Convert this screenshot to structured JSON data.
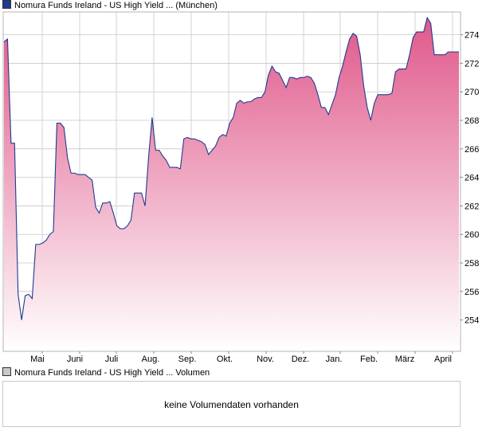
{
  "price_legend": {
    "label": "Nomura Funds Ireland - US High Yield ... (München)",
    "color": "#1f3b8f"
  },
  "volume_legend": {
    "label": "Nomura Funds Ireland - US High Yield ... Volumen",
    "color": "#c8c8c8"
  },
  "volume_panel": {
    "message": "keine Volumendaten vorhanden"
  },
  "chart_data": {
    "type": "area",
    "title": "",
    "xlabel": "",
    "ylabel": "",
    "ylim": [
      251.8,
      275.6
    ],
    "yticks": [
      254,
      256,
      258,
      260,
      262,
      264,
      266,
      268,
      270,
      272,
      274
    ],
    "x_ticks": [
      "Mai",
      "Juni",
      "Juli",
      "Aug.",
      "Sep.",
      "Okt.",
      "Nov.",
      "Dez.",
      "Jan.",
      "Feb.",
      "März",
      "April"
    ],
    "grid": true,
    "colors": {
      "line": "#1f3b8f",
      "fill_top": "#e0588a",
      "fill_bottom": "#ffffff",
      "grid": "#c8c8c8"
    },
    "series": [
      {
        "values": [
          273.5,
          273.7,
          266.4,
          266.4,
          255.8,
          254.0,
          255.7,
          255.8,
          255.5,
          259.3,
          259.3,
          259.4,
          259.6,
          260.0,
          260.2,
          267.8,
          267.8,
          267.5,
          265.4,
          264.3,
          264.3,
          264.2,
          264.2,
          264.2,
          264.0,
          263.8,
          261.9,
          261.5,
          262.2,
          262.2,
          262.3,
          261.5,
          260.6,
          260.4,
          260.4,
          260.6,
          261.0,
          262.9,
          262.9,
          262.9,
          262.0,
          265.4,
          268.2,
          265.9,
          265.9,
          265.5,
          265.2,
          264.7,
          264.7,
          264.7,
          264.6,
          266.7,
          266.8,
          266.7,
          266.7,
          266.6,
          266.5,
          266.3,
          265.6,
          265.9,
          266.2,
          266.8,
          267.0,
          266.9,
          267.8,
          268.2,
          269.2,
          269.4,
          269.2,
          269.3,
          269.3,
          269.5,
          269.6,
          269.6,
          270.0,
          271.2,
          271.8,
          271.4,
          271.3,
          270.8,
          270.3,
          271.0,
          271.0,
          270.9,
          271.0,
          271.0,
          271.1,
          271.0,
          270.6,
          269.8,
          268.9,
          268.9,
          268.4,
          269.1,
          269.8,
          271.0,
          271.8,
          272.8,
          273.7,
          274.1,
          273.9,
          272.6,
          270.4,
          268.9,
          268.0,
          269.2,
          269.8,
          269.8,
          269.8,
          269.8,
          269.9,
          271.4,
          271.6,
          271.6,
          271.6,
          272.6,
          273.8,
          274.2,
          274.2,
          274.2,
          275.2,
          274.8,
          272.6,
          272.6,
          272.6,
          272.6,
          272.8,
          272.8,
          272.8,
          272.8
        ]
      }
    ]
  }
}
